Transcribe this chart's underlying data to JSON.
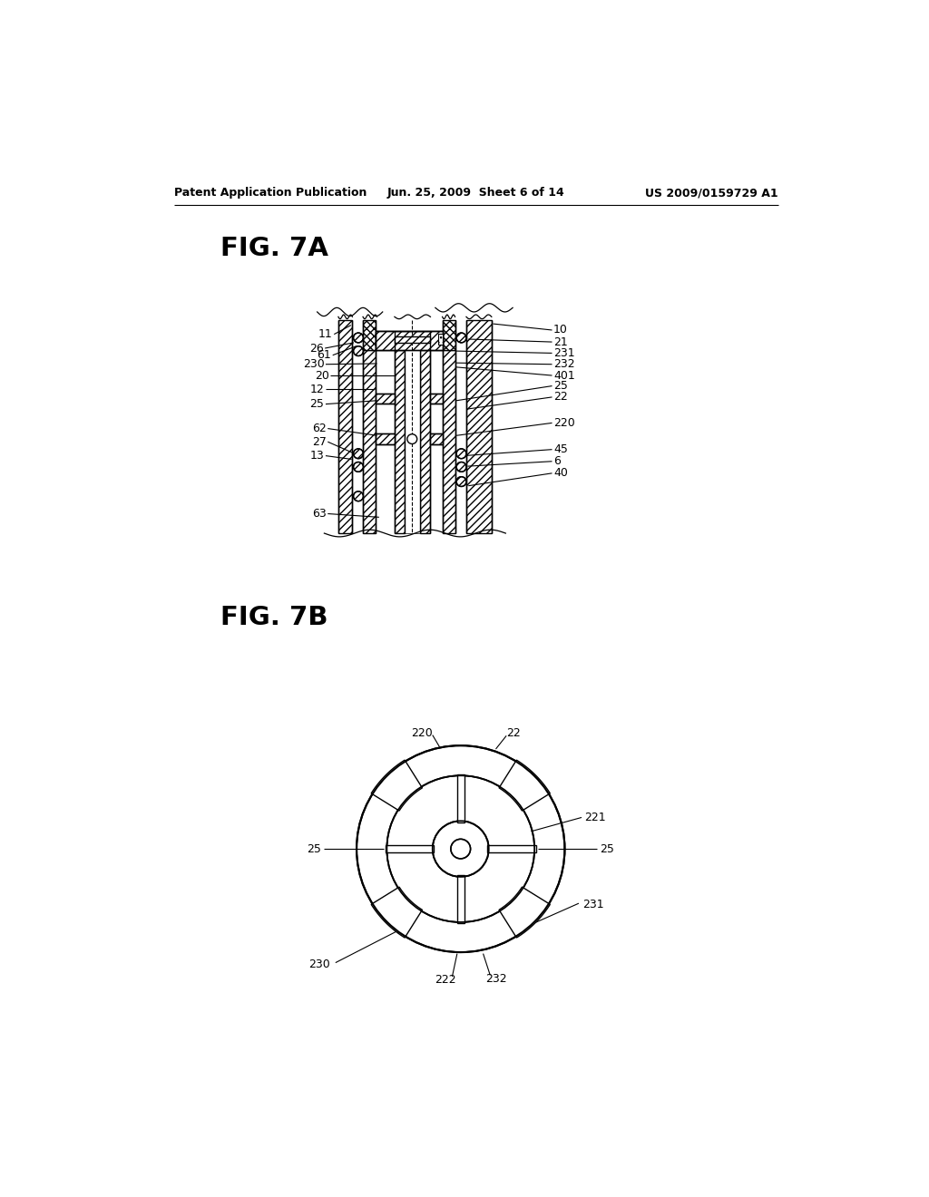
{
  "bg_color": "#ffffff",
  "header_left": "Patent Application Publication",
  "header_mid": "Jun. 25, 2009  Sheet 6 of 14",
  "header_right": "US 2009/0159729 A1",
  "fig7a_title": "FIG. 7A",
  "fig7b_title": "FIG. 7B"
}
